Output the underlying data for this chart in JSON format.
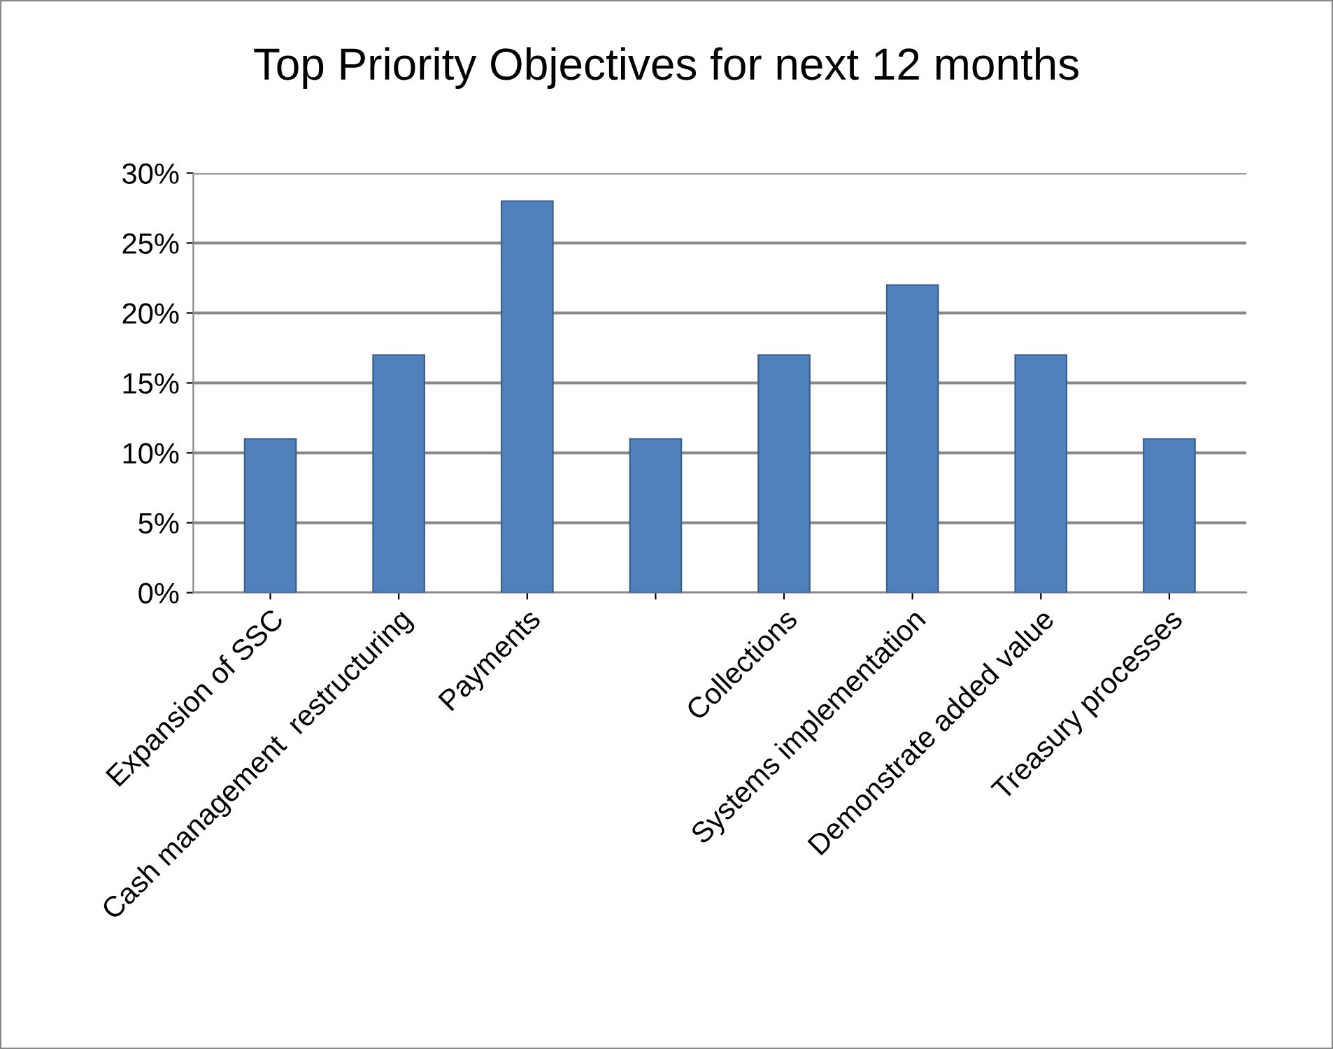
{
  "chart_data": {
    "type": "bar",
    "title": "Top Priority Objectives for next 12 months",
    "categories": [
      "Expansion of SSC",
      "Cash management  restructuring",
      "Payments",
      null,
      "Collections",
      "Systems implementation",
      "Demonstrate added value",
      "Treasury processes"
    ],
    "values": [
      11,
      17,
      28,
      11,
      17,
      22,
      17,
      11
    ],
    "color": "#4f81bd",
    "ylim": [
      0,
      30
    ],
    "yticks": [
      {
        "value": 0,
        "label": "0%"
      },
      {
        "value": 5,
        "label": "5%"
      },
      {
        "value": 10,
        "label": "10%"
      },
      {
        "value": 15,
        "label": "15%"
      },
      {
        "value": 20,
        "label": "20%"
      },
      {
        "value": 25,
        "label": "25%"
      },
      {
        "value": 30,
        "label": "30%"
      }
    ],
    "grid": "y",
    "legend": false
  }
}
